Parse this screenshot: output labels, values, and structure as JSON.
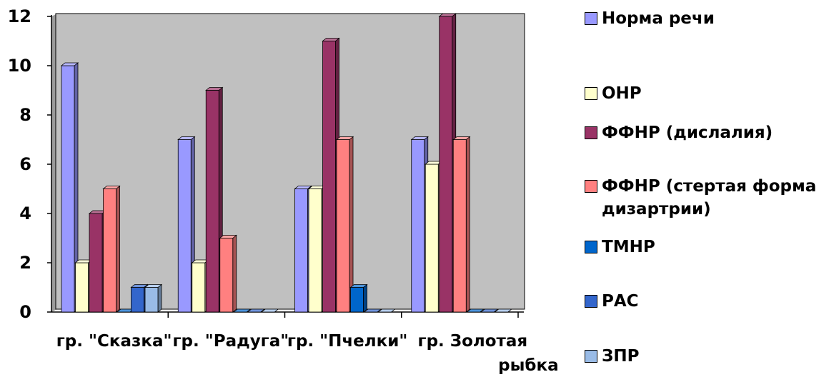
{
  "chart_data": {
    "type": "bar",
    "categories": [
      "гр. \"Сказка\"",
      "гр. \"Радуга\"",
      "гр. \"Пчелки\"",
      "гр. Золотая рыбка"
    ],
    "series": [
      {
        "name": "Норма речи",
        "values": [
          10,
          7,
          5,
          7
        ],
        "color": "#9999ff"
      },
      {
        "name": "ОНР",
        "values": [
          2,
          2,
          5,
          6
        ],
        "color": "#ffffcc"
      },
      {
        "name": "ФФНР (дислалия)",
        "values": [
          4,
          9,
          11,
          12
        ],
        "color": "#993366"
      },
      {
        "name": "ФФНР (стертая форма дизартрии)",
        "values": [
          5,
          3,
          7,
          7
        ],
        "color": "#ff8080"
      },
      {
        "name": "ТМНР",
        "values": [
          0,
          0,
          1,
          0
        ],
        "color": "#0066cc"
      },
      {
        "name": "РАС",
        "values": [
          1,
          0,
          0,
          0
        ],
        "color": "#3366cc"
      },
      {
        "name": "ЗПР",
        "values": [
          1,
          0,
          0,
          0
        ],
        "color": "#99bbe6"
      }
    ],
    "ylim": [
      0,
      12
    ],
    "yticks": [
      0,
      2,
      4,
      6,
      8,
      10,
      12
    ],
    "grid": false,
    "legend_position": "right",
    "plot_background": "#c0c0c0"
  }
}
